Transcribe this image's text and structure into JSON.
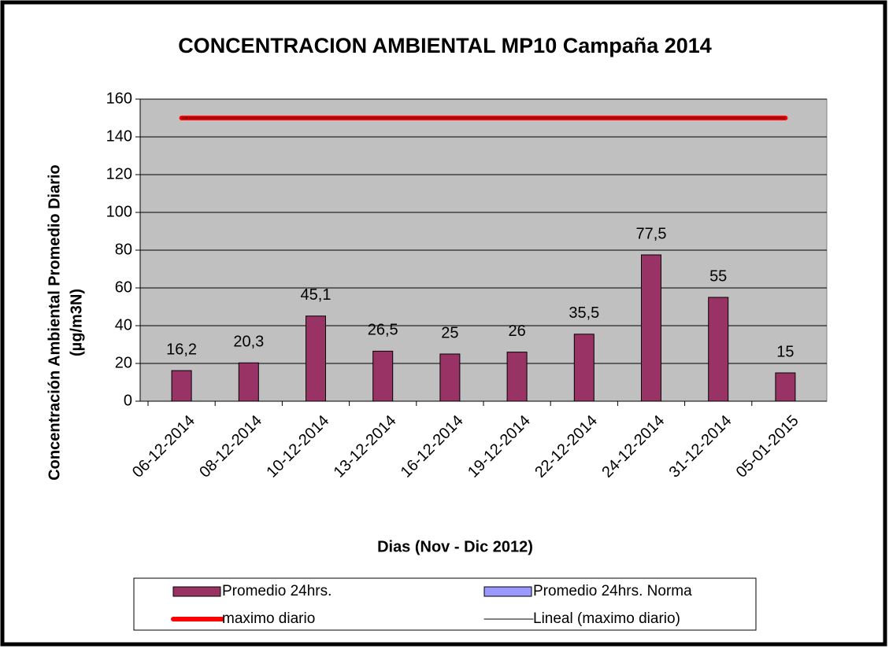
{
  "chart_data": {
    "type": "bar",
    "title": "CONCENTRACION AMBIENTAL MP10 Campaña 2014",
    "xlabel": "Dias (Nov - Dic 2012)",
    "ylabel": [
      "Concentración Ambiental Promedio Diario",
      "(µg/m3N)"
    ],
    "categories": [
      "06-12-2014",
      "08-12-2014",
      "10-12-2014",
      "13-12-2014",
      "16-12-2014",
      "19-12-2014",
      "22-12-2014",
      "24-12-2014",
      "31-12-2014",
      "05-01-2015"
    ],
    "series": [
      {
        "name": "Promedio 24hrs.",
        "type": "bar",
        "color": "#993366",
        "values": [
          16.2,
          20.3,
          45.1,
          26.5,
          25,
          26,
          35.5,
          77.5,
          55,
          15
        ],
        "value_labels": [
          "16,2",
          "20,3",
          "45,1",
          "26,5",
          "25",
          "26",
          "35,5",
          "77,5",
          "55",
          "15"
        ]
      },
      {
        "name": "Promedio 24hrs. Norma",
        "type": "bar",
        "color": "#9999ff",
        "values": [
          null,
          null,
          null,
          null,
          null,
          null,
          null,
          null,
          null,
          null
        ]
      },
      {
        "name": "maximo diario",
        "type": "line",
        "color": "#ff0000",
        "values": [
          150,
          150,
          150,
          150,
          150,
          150,
          150,
          150,
          150,
          150
        ]
      },
      {
        "name": "Lineal (maximo diario)",
        "type": "line",
        "color": "#000000",
        "values": [
          150,
          150,
          150,
          150,
          150,
          150,
          150,
          150,
          150,
          150
        ]
      }
    ],
    "ylim": [
      0,
      160
    ],
    "yticks": [
      0,
      20,
      40,
      60,
      80,
      100,
      120,
      140,
      160
    ],
    "grid": true,
    "legend": "bottom"
  }
}
